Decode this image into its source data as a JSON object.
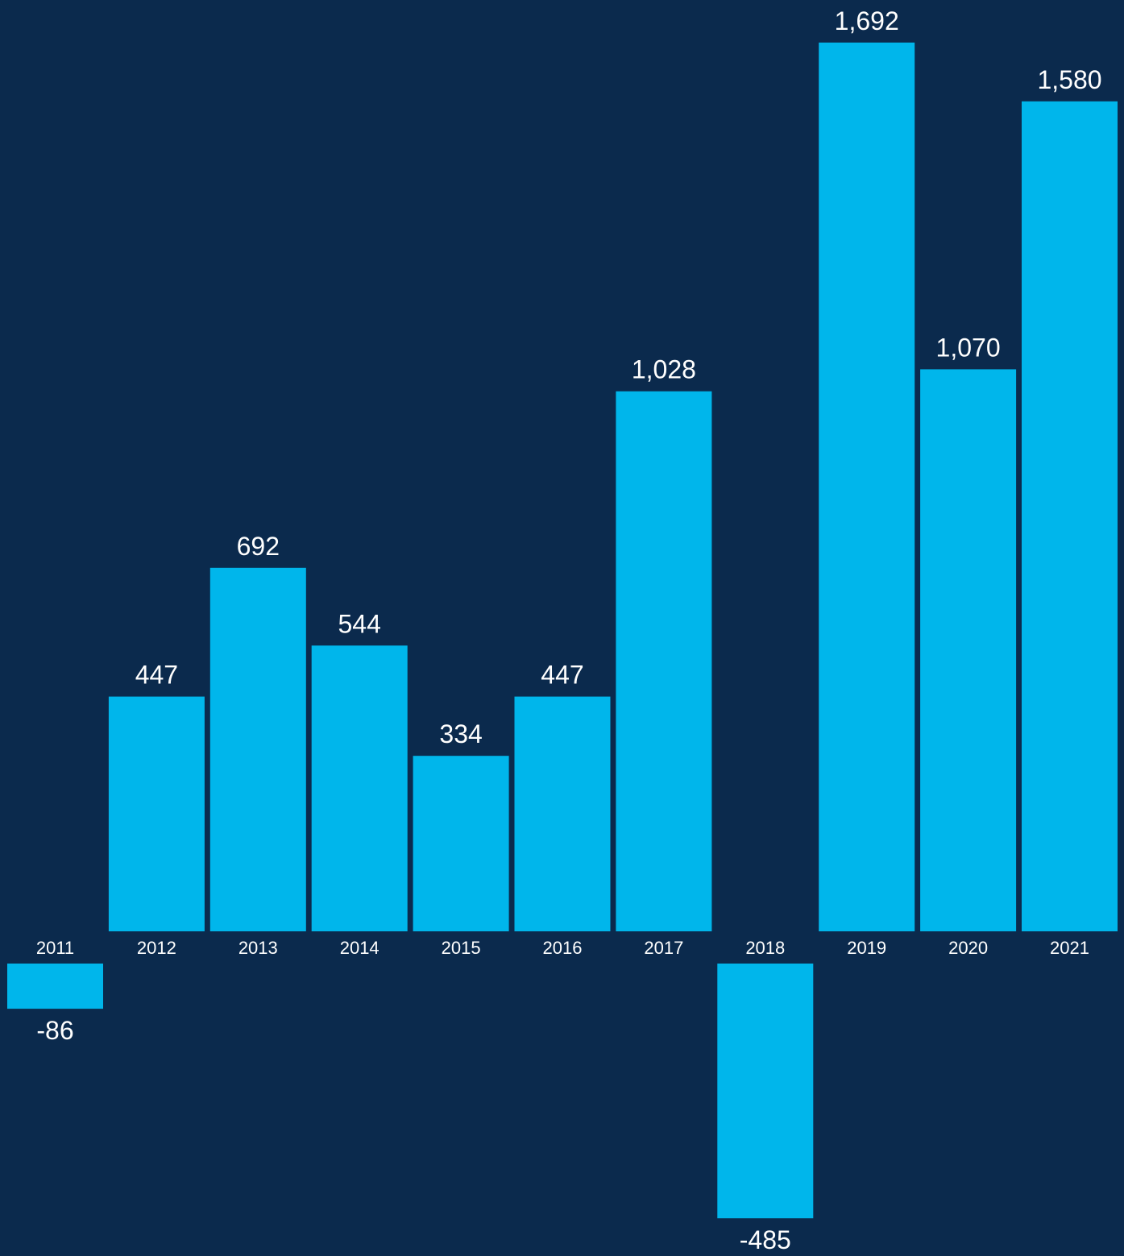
{
  "chart_data": {
    "type": "bar",
    "categories": [
      "2011",
      "2012",
      "2013",
      "2014",
      "2015",
      "2016",
      "2017",
      "2018",
      "2019",
      "2020",
      "2021"
    ],
    "values": [
      -86,
      447,
      692,
      544,
      334,
      447,
      1028,
      -485,
      1692,
      1070,
      1580
    ],
    "data_labels": [
      "-86",
      "447",
      "692",
      "544",
      "334",
      "447",
      "1,028",
      "-485",
      "1,692",
      "1,070",
      "1,580"
    ],
    "title": "",
    "xlabel": "",
    "ylabel": "",
    "grid": false,
    "legend": "none",
    "colors": {
      "background": "#0b2a4d",
      "bar": "#00b6eb",
      "text": "#ffffff"
    }
  }
}
